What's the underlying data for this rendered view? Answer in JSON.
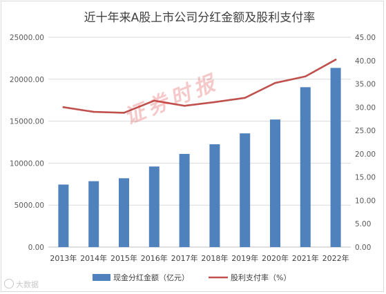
{
  "chart_data": {
    "type": "bar",
    "title": "近十年来A股上市公司分红金额及股利支付率",
    "categories": [
      "2013年",
      "2014年",
      "2015年",
      "2016年",
      "2017年",
      "2018年",
      "2019年",
      "2020年",
      "2021年",
      "2022年"
    ],
    "series": [
      {
        "name": "现金分红金额（亿元）",
        "type": "bar",
        "axis": "left",
        "color": "#4f81bd",
        "values": [
          7450,
          7850,
          8200,
          9600,
          11100,
          12250,
          13550,
          15200,
          19050,
          21350
        ]
      },
      {
        "name": "股利支付率（%）",
        "type": "line",
        "axis": "right",
        "color": "#c0504d",
        "values": [
          30.0,
          29.0,
          28.8,
          31.4,
          30.3,
          31.1,
          32.0,
          35.2,
          36.6,
          40.2
        ]
      }
    ],
    "y_left": {
      "min": 0,
      "max": 25000,
      "ticks": [
        "0.00",
        "5000.00",
        "10000.00",
        "15000.00",
        "20000.00",
        "25000.00"
      ]
    },
    "y_right": {
      "min": 0,
      "max": 45,
      "ticks": [
        "0.00",
        "5.00",
        "10.00",
        "15.00",
        "20.00",
        "25.00",
        "30.00",
        "35.00",
        "40.00",
        "45.00"
      ]
    },
    "grid": true,
    "legend": "bottom"
  },
  "watermark": "证券时报",
  "logo": "大数据"
}
